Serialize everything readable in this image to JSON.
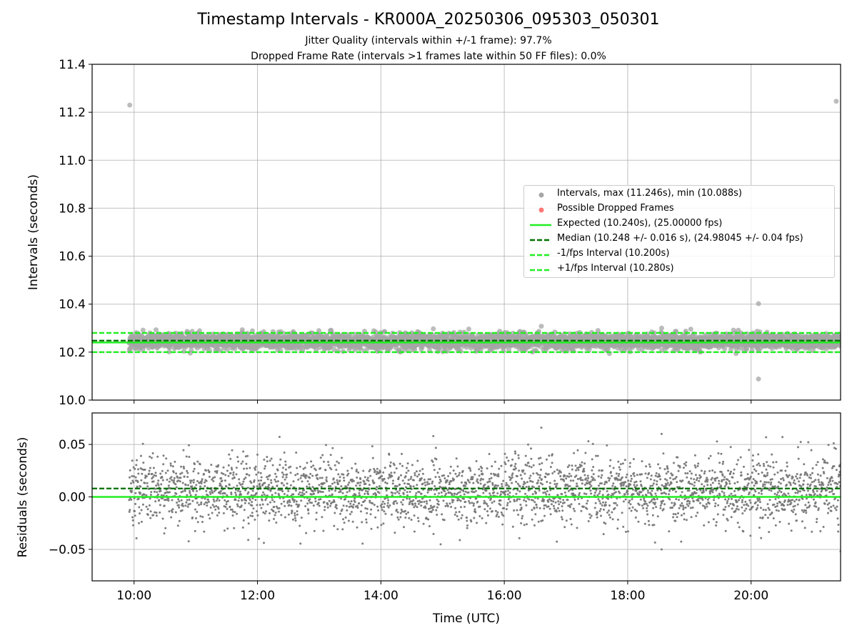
{
  "title": "Timestamp Intervals - KR000A_20250306_095303_050301",
  "subtitle_1": "Jitter Quality (intervals within +/-1 frame): 97.7%",
  "subtitle_2": "Dropped Frame Rate (intervals >1 frames late within 50 FF files): 0.0%",
  "colors": {
    "points_top": "#a6a6a6",
    "points_bottom": "#777777",
    "dropped": "#ff5555",
    "expected": "#22ee22",
    "median": "#007000",
    "bounds": "#22ee22",
    "grid": "#b0b0b0"
  },
  "chart_data": [
    {
      "type": "scatter",
      "panel": "top",
      "ylabel": "Intervals (seconds)",
      "ylim": [
        10.0,
        11.4
      ],
      "yticks": [
        10.0,
        10.2,
        10.4,
        10.6,
        10.8,
        11.0,
        11.2,
        11.4
      ],
      "ytick_labels": [
        "10.0",
        "10.2",
        "10.4",
        "10.6",
        "10.8",
        "11.0",
        "11.2",
        "11.4"
      ],
      "xlim_hours": [
        9.32,
        21.45
      ],
      "xticks": [
        10,
        12,
        14,
        16,
        18,
        20
      ],
      "xtick_labels": [
        "10:00",
        "12:00",
        "14:00",
        "16:00",
        "18:00",
        "20:00"
      ],
      "grid": true,
      "legend_position": "center-right",
      "legend": [
        {
          "label": "Intervals, max (11.246s), min (10.088s)",
          "kind": "dot",
          "color": "#a6a6a6"
        },
        {
          "label": "Possible Dropped Frames",
          "kind": "dot",
          "color": "#ff5555"
        },
        {
          "label": "Expected (10.240s), (25.00000 fps)",
          "kind": "solid",
          "color": "#22ee22"
        },
        {
          "label": "Median (10.248 +/- 0.016 s), (24.98045 +/- 0.04 fps)",
          "kind": "dashed",
          "color": "#007000"
        },
        {
          "label": "-1/fps Interval (10.200s)",
          "kind": "dashed",
          "color": "#22ee22"
        },
        {
          "label": "+1/fps Interval (10.280s)",
          "kind": "dashed",
          "color": "#22ee22"
        }
      ],
      "expected": 10.24,
      "median": 10.248,
      "lower_bound": 10.2,
      "upper_bound": 10.28,
      "series_summary": {
        "time_range_hours": [
          9.92,
          21.45
        ],
        "center": 10.245,
        "spread_sd": 0.016,
        "count_approx": 4100
      },
      "outliers": [
        {
          "time_h": 9.93,
          "value": 11.23
        },
        {
          "time_h": 21.38,
          "value": 11.246
        },
        {
          "time_h": 20.12,
          "value": 10.402
        },
        {
          "time_h": 20.12,
          "value": 10.088
        },
        {
          "time_h": 16.6,
          "value": 10.308
        },
        {
          "time_h": 18.55,
          "value": 10.3
        },
        {
          "time_h": 14.85,
          "value": 10.297
        }
      ]
    },
    {
      "type": "scatter",
      "panel": "bottom",
      "xlabel": "Time (UTC)",
      "ylabel": "Residuals (seconds)",
      "ylim": [
        -0.08,
        0.08
      ],
      "yticks": [
        -0.05,
        0.0,
        0.05
      ],
      "ytick_labels": [
        "−0.05",
        "0.00",
        "0.05"
      ],
      "xlim_hours": [
        9.32,
        21.45
      ],
      "xticks": [
        10,
        12,
        14,
        16,
        18,
        20
      ],
      "xtick_labels": [
        "10:00",
        "12:00",
        "14:00",
        "16:00",
        "18:00",
        "20:00"
      ],
      "grid": true,
      "expected_line": 0.0,
      "median_line": 0.008,
      "series_summary": {
        "time_range_hours": [
          9.92,
          21.45
        ],
        "center": 0.006,
        "spread_sd": 0.016,
        "count_approx": 3000
      },
      "outliers": [
        {
          "time_h": 16.6,
          "value": 0.066
        },
        {
          "time_h": 14.85,
          "value": 0.058
        },
        {
          "time_h": 18.55,
          "value": 0.06
        },
        {
          "time_h": 18.55,
          "value": -0.05
        },
        {
          "time_h": 11.85,
          "value": -0.041
        },
        {
          "time_h": 21.45,
          "value": -0.052
        }
      ]
    }
  ]
}
